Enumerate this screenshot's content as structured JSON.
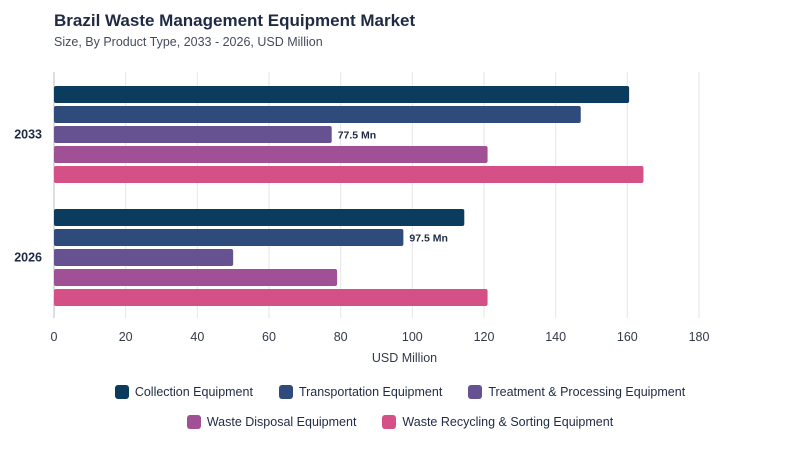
{
  "chart_data": {
    "type": "bar",
    "orientation": "horizontal",
    "title": "Brazil Waste Management Equipment Market",
    "subtitle": "Size, By Product Type, 2033 - 2026, USD Million",
    "categories": [
      "2033",
      "2026"
    ],
    "xlabel": "USD Million",
    "xlim": [
      0,
      180
    ],
    "xticks": [
      0,
      20,
      40,
      60,
      80,
      100,
      120,
      140,
      160,
      180
    ],
    "grid": true,
    "legend_position": "bottom",
    "series": [
      {
        "name": "Collection Equipment",
        "color": "#0b3c5d",
        "values": [
          160.5,
          114.5
        ]
      },
      {
        "name": "Transportation Equipment",
        "color": "#2f4b7c",
        "values": [
          147,
          97.5
        ]
      },
      {
        "name": "Treatment & Processing Equipment",
        "color": "#665191",
        "values": [
          77.5,
          50
        ]
      },
      {
        "name": "Waste Disposal Equipment",
        "color": "#a05195",
        "values": [
          121,
          79
        ]
      },
      {
        "name": "Waste Recycling & Sorting Equipment",
        "color": "#d45087",
        "values": [
          164.5,
          121
        ]
      }
    ],
    "annotations": [
      {
        "category": "2033",
        "series": "Treatment & Processing Equipment",
        "text": "77.5 Mn"
      },
      {
        "category": "2026",
        "series": "Transportation Equipment",
        "text": "97.5 Mn"
      }
    ]
  }
}
